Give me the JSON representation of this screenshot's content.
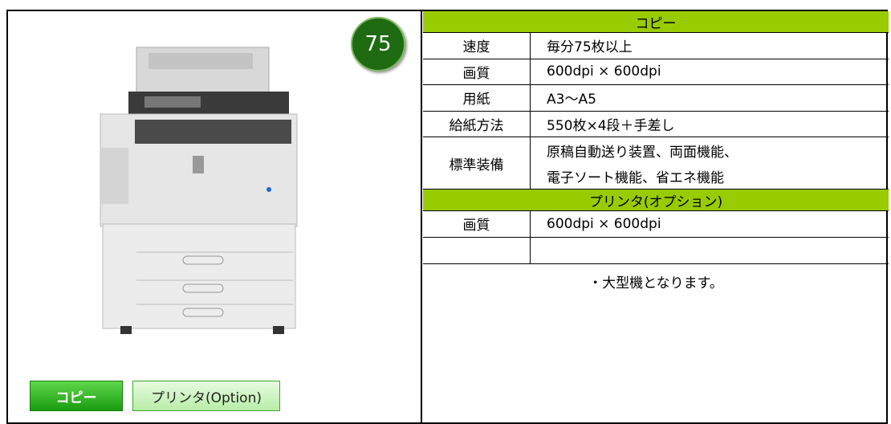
{
  "badge": "75",
  "buttons": [
    "コピー",
    "プリンタ(Option)"
  ],
  "table": {
    "sections": [
      {
        "header": "コピー",
        "rows": [
          {
            "label": "速度",
            "value": [
              "毎分75枚以上"
            ]
          },
          {
            "label": "画質",
            "value": [
              "600dpi × 600dpi"
            ]
          },
          {
            "label": "用紙",
            "value": [
              "A3～A5"
            ]
          },
          {
            "label": "給紙方法",
            "value": [
              "550枚×4段＋手差し"
            ]
          },
          {
            "label": "標準装備",
            "value": [
              "原稿自動送り装置、両面機能、",
              "電子ソート機能、省エネ機能"
            ]
          }
        ]
      },
      {
        "header": "プリンタ(オプション)",
        "rows": [
          {
            "label": "画質",
            "value": [
              "600dpi × 600dpi"
            ]
          }
        ]
      }
    ]
  },
  "note": "・大型機となります。"
}
